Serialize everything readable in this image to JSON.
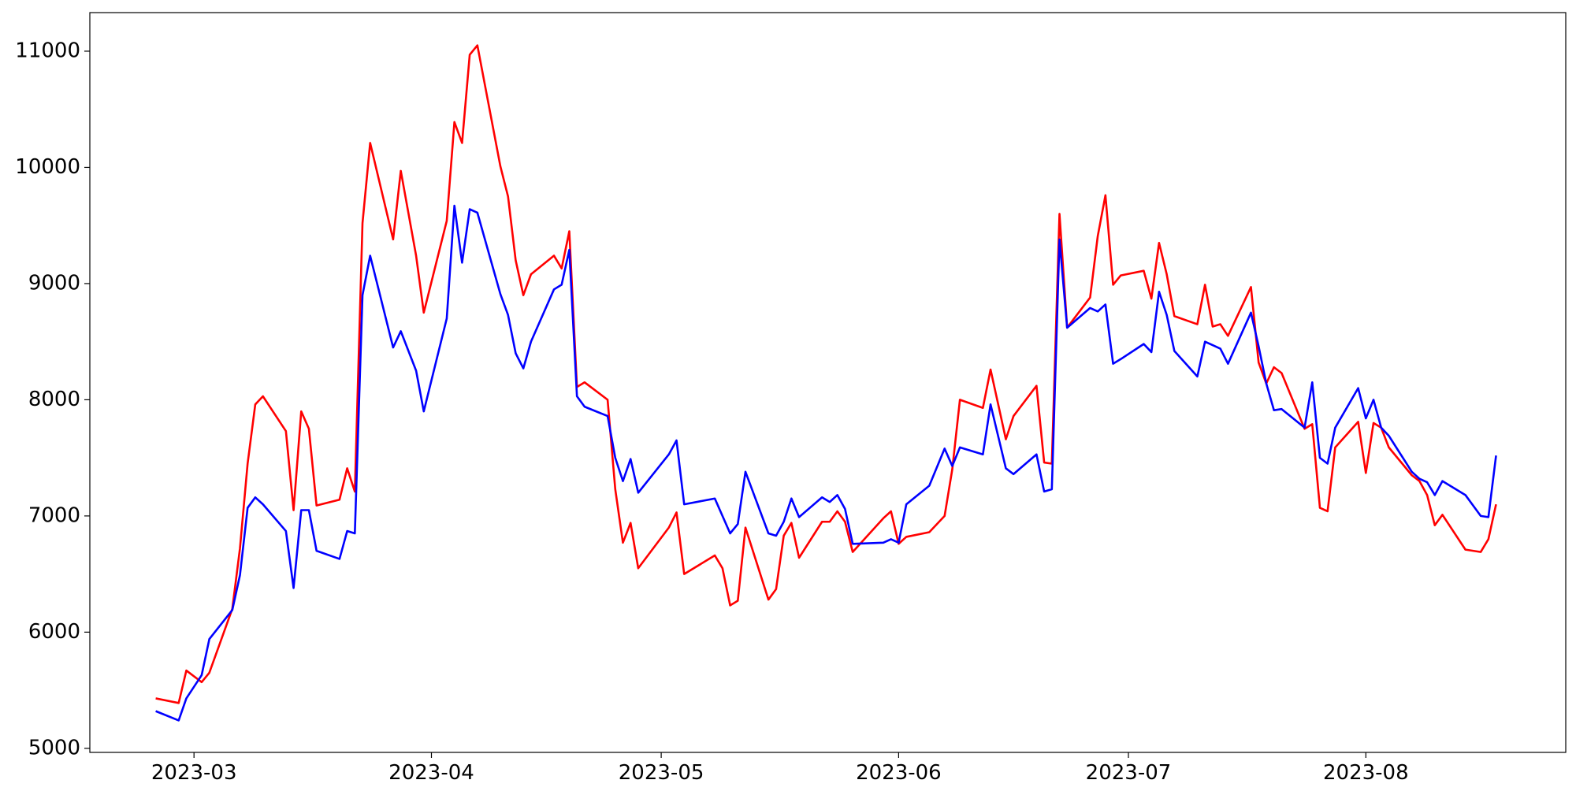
{
  "chart_data": {
    "type": "line",
    "x": [
      55,
      58,
      59,
      61,
      62,
      65,
      66,
      67,
      68,
      69,
      72,
      73,
      74,
      75,
      76,
      79,
      80,
      81,
      82,
      83,
      86,
      87,
      89,
      90,
      93,
      94,
      95,
      96,
      97,
      100,
      101,
      102,
      103,
      104,
      107,
      108,
      109,
      110,
      111,
      114,
      115,
      116,
      117,
      118,
      122,
      123,
      124,
      128,
      129,
      130,
      131,
      132,
      135,
      136,
      137,
      138,
      139,
      142,
      143,
      144,
      145,
      146,
      150,
      151,
      152,
      153,
      156,
      158,
      159,
      160,
      163,
      164,
      166,
      167,
      170,
      171,
      172,
      173,
      174,
      177,
      178,
      179,
      180,
      181,
      184,
      185,
      186,
      187,
      188,
      191,
      192,
      193,
      194,
      195,
      198,
      199,
      200,
      201,
      202,
      205,
      206,
      207,
      208,
      209,
      212,
      213,
      214,
      215,
      216,
      219,
      220,
      221,
      222,
      223,
      226,
      228,
      229,
      230
    ],
    "series": [
      {
        "color": "#ff0000",
        "values": [
          5430,
          5390,
          5670,
          5570,
          5650,
          6200,
          6720,
          7450,
          7960,
          8030,
          7730,
          7050,
          7900,
          7750,
          7090,
          7140,
          7410,
          7210,
          9520,
          10210,
          9380,
          9970,
          9240,
          8750,
          9540,
          10390,
          10210,
          10970,
          11050,
          10010,
          9750,
          9200,
          8900,
          9080,
          9240,
          9130,
          9450,
          8110,
          8150,
          8000,
          7230,
          6770,
          6940,
          6550,
          6900,
          7030,
          6500,
          6660,
          6550,
          6230,
          6270,
          6900,
          6280,
          6370,
          6830,
          6940,
          6640,
          6950,
          6950,
          7040,
          6950,
          6690,
          6980,
          7040,
          6760,
          6820,
          6860,
          7000,
          7400,
          8000,
          7930,
          8260,
          7660,
          7860,
          8120,
          7460,
          7450,
          9600,
          8620,
          8880,
          9410,
          9760,
          8990,
          9070,
          9110,
          8870,
          9350,
          9080,
          8720,
          8650,
          8990,
          8630,
          8650,
          8550,
          8970,
          8320,
          8140,
          8280,
          8230,
          7750,
          7790,
          7070,
          7040,
          7590,
          7810,
          7370,
          7800,
          7760,
          7590,
          7350,
          7300,
          7180,
          6920,
          7010,
          6710,
          6690,
          6800,
          7100
        ]
      },
      {
        "color": "#0000ff",
        "values": [
          5320,
          5240,
          5430,
          5630,
          5940,
          6190,
          6490,
          7070,
          7160,
          7100,
          6870,
          6380,
          7050,
          7050,
          6700,
          6630,
          6870,
          6850,
          8900,
          9240,
          8450,
          8590,
          8250,
          7900,
          8700,
          9670,
          9180,
          9640,
          9610,
          8910,
          8730,
          8400,
          8270,
          8500,
          8950,
          8990,
          9290,
          8030,
          7940,
          7860,
          7500,
          7300,
          7490,
          7200,
          7530,
          7650,
          7100,
          7150,
          7000,
          6850,
          6930,
          7380,
          6850,
          6830,
          6950,
          7150,
          6990,
          7160,
          7120,
          7180,
          7060,
          6760,
          6770,
          6800,
          6770,
          7100,
          7260,
          7580,
          7430,
          7590,
          7530,
          7960,
          7410,
          7360,
          7530,
          7210,
          7230,
          9380,
          8620,
          8790,
          8760,
          8820,
          8310,
          8350,
          8480,
          8410,
          8930,
          8730,
          8420,
          8200,
          8500,
          8470,
          8440,
          8310,
          8750,
          8460,
          8140,
          7910,
          7920,
          7760,
          8150,
          7500,
          7450,
          7760,
          8100,
          7840,
          8000,
          7760,
          7690,
          7380,
          7320,
          7290,
          7180,
          7300,
          7180,
          7000,
          6990,
          7520
        ]
      }
    ],
    "xlim": [
      46.4,
      239.1
    ],
    "xticks": [
      {
        "value": 60,
        "label": "2023-03"
      },
      {
        "value": 91,
        "label": "2023-04"
      },
      {
        "value": 121,
        "label": "2023-05"
      },
      {
        "value": 152,
        "label": "2023-06"
      },
      {
        "value": 182,
        "label": "2023-07"
      },
      {
        "value": 213,
        "label": "2023-08"
      }
    ],
    "ylim": [
      4965,
      11332
    ],
    "yticks": [
      5000,
      6000,
      7000,
      8000,
      9000,
      10000,
      11000
    ],
    "grid": false
  }
}
